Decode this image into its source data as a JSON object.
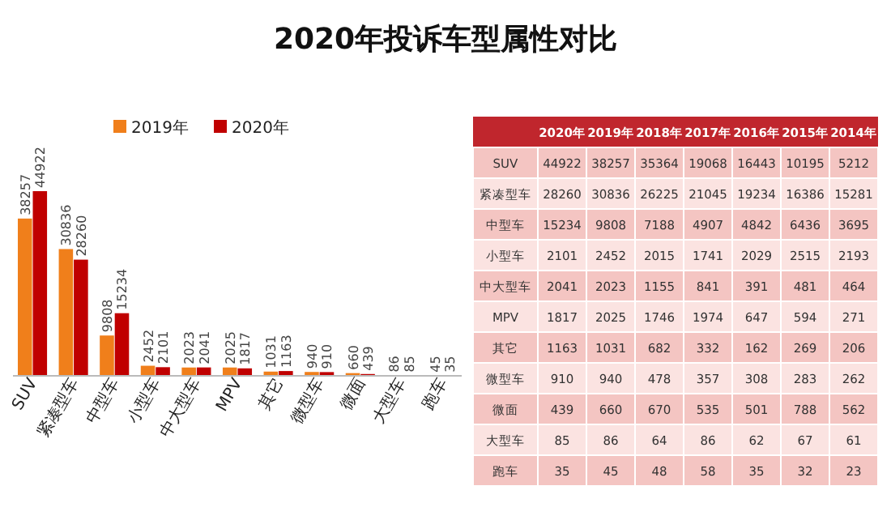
{
  "chart_data": [
    {
      "type": "bar",
      "title": "2020年投诉车型属性对比",
      "categories": [
        "SUV",
        "紧凑型车",
        "中型车",
        "小型车",
        "中大型车",
        "MPV",
        "其它",
        "微型车",
        "微面",
        "大型车",
        "跑车"
      ],
      "series": [
        {
          "name": "2019年",
          "color": "#f07f1b",
          "values": [
            38257,
            30836,
            9808,
            2452,
            2023,
            2025,
            1031,
            940,
            660,
            86,
            45
          ]
        },
        {
          "name": "2020年",
          "color": "#c00000",
          "values": [
            44922,
            28260,
            15234,
            2101,
            2041,
            1817,
            1163,
            910,
            439,
            85,
            35
          ]
        }
      ],
      "data_labels": true,
      "legend": "top",
      "grid": false
    },
    {
      "type": "heatmap",
      "categories": [
        "2020年",
        "2019年",
        "2018年",
        "2017年",
        "2016年",
        "2015年",
        "2014年"
      ],
      "y_categories": [
        "SUV",
        "紧凑型车",
        "中型车",
        "小型车",
        "中大型车",
        "MPV",
        "其它",
        "微型车",
        "微面",
        "大型车",
        "跑车"
      ],
      "cells": [
        [
          44922,
          38257,
          35364,
          19068,
          16443,
          10195,
          5212
        ],
        [
          28260,
          30836,
          26225,
          21045,
          19234,
          16386,
          15281
        ],
        [
          15234,
          9808,
          7188,
          4907,
          4842,
          6436,
          3695
        ],
        [
          2101,
          2452,
          2015,
          1741,
          2029,
          2515,
          2193
        ],
        [
          2041,
          2023,
          1155,
          841,
          391,
          481,
          464
        ],
        [
          1817,
          2025,
          1746,
          1974,
          647,
          594,
          271
        ],
        [
          1163,
          1031,
          682,
          332,
          162,
          269,
          206
        ],
        [
          910,
          940,
          478,
          357,
          308,
          283,
          262
        ],
        [
          439,
          660,
          670,
          535,
          501,
          788,
          562
        ],
        [
          85,
          86,
          64,
          86,
          62,
          67,
          61
        ],
        [
          35,
          45,
          48,
          58,
          35,
          32,
          23
        ]
      ],
      "data_labels": true,
      "colors": [
        "#c0262d",
        "#f4c5c2",
        "#fbe3e1"
      ]
    }
  ]
}
